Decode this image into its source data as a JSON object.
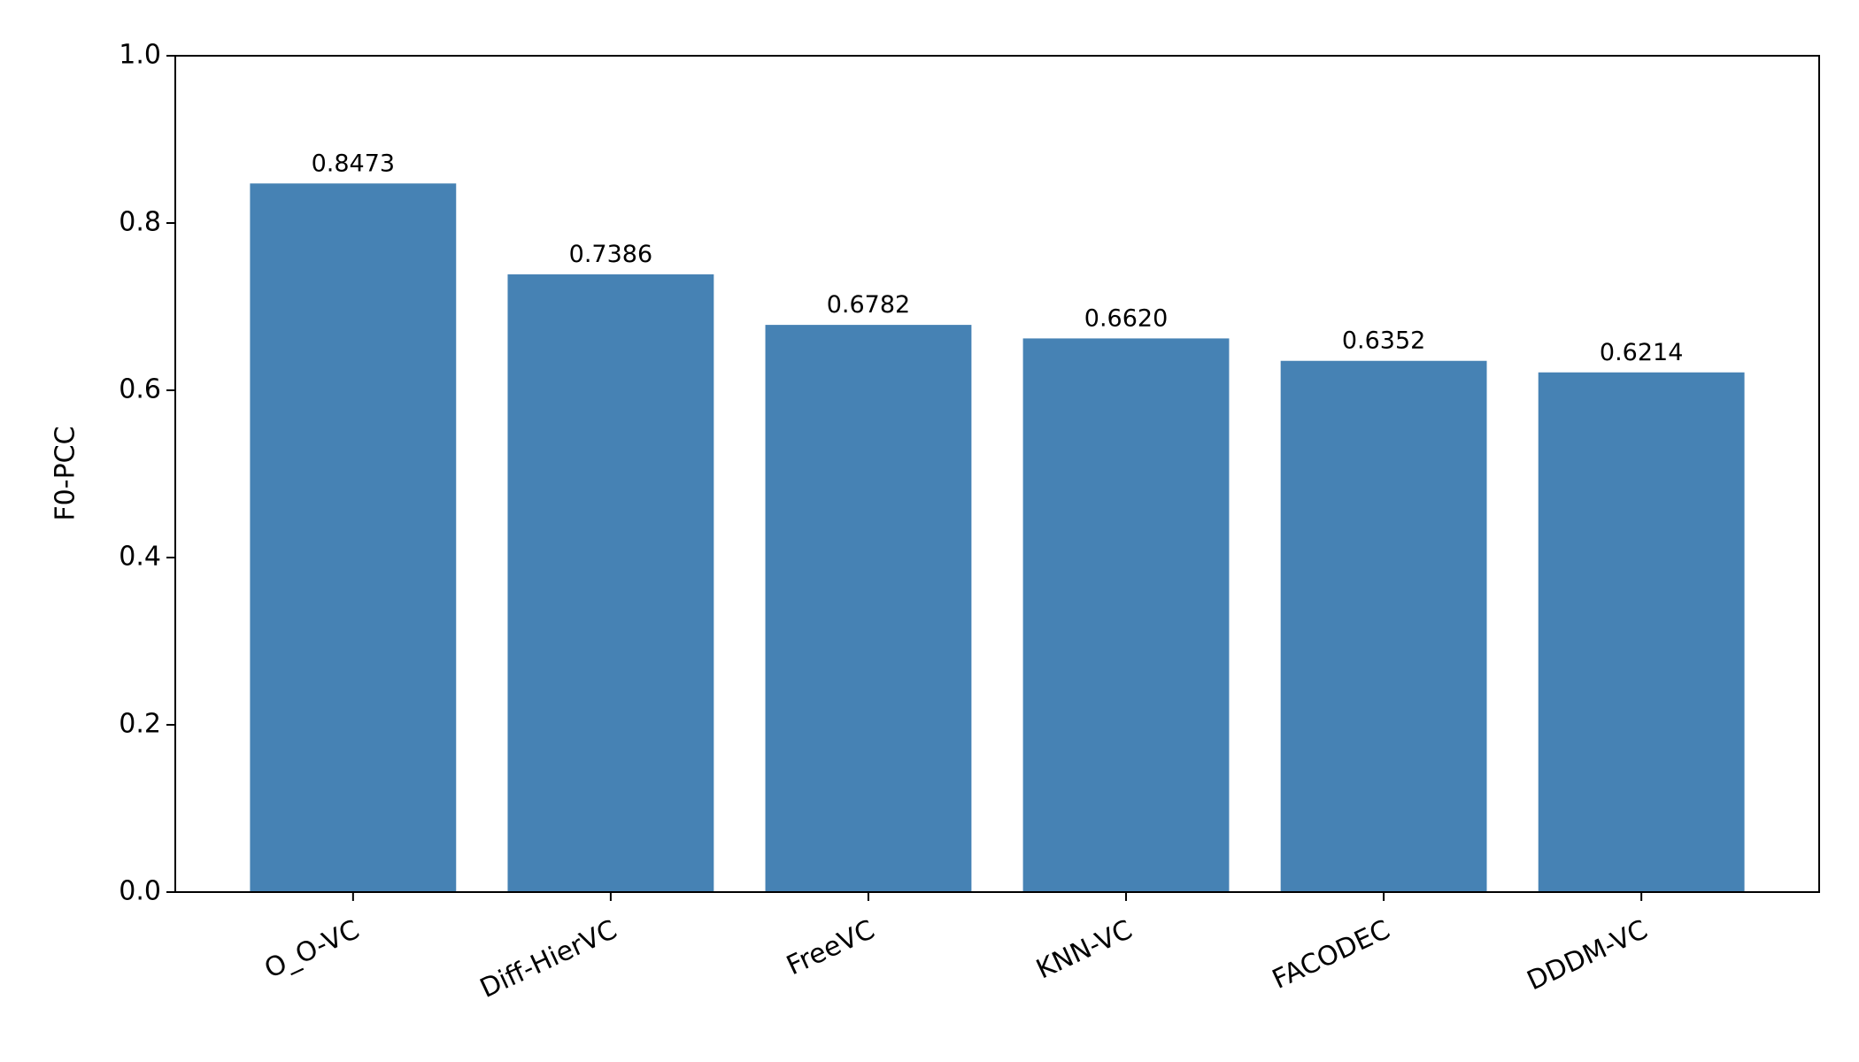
{
  "chart_data": {
    "type": "bar",
    "y_label": "F0-PCC",
    "categories": [
      "O_O-VC",
      "Diff-HierVC",
      "FreeVC",
      "KNN-VC",
      "FACODEC",
      "DDDM-VC"
    ],
    "values": [
      0.8473,
      0.7386,
      0.6782,
      0.662,
      0.6352,
      0.6214
    ],
    "value_labels": [
      "0.8473",
      "0.7386",
      "0.6782",
      "0.6620",
      "0.6352",
      "0.6214"
    ],
    "color": "#4682b4",
    "ylim": [
      0,
      1
    ],
    "yticks": [
      {
        "value": 0,
        "label": "0.0"
      },
      0.2,
      0.4,
      0.6,
      0.8,
      {
        "value": 1,
        "label": "1.0"
      }
    ],
    "grid": false
  }
}
